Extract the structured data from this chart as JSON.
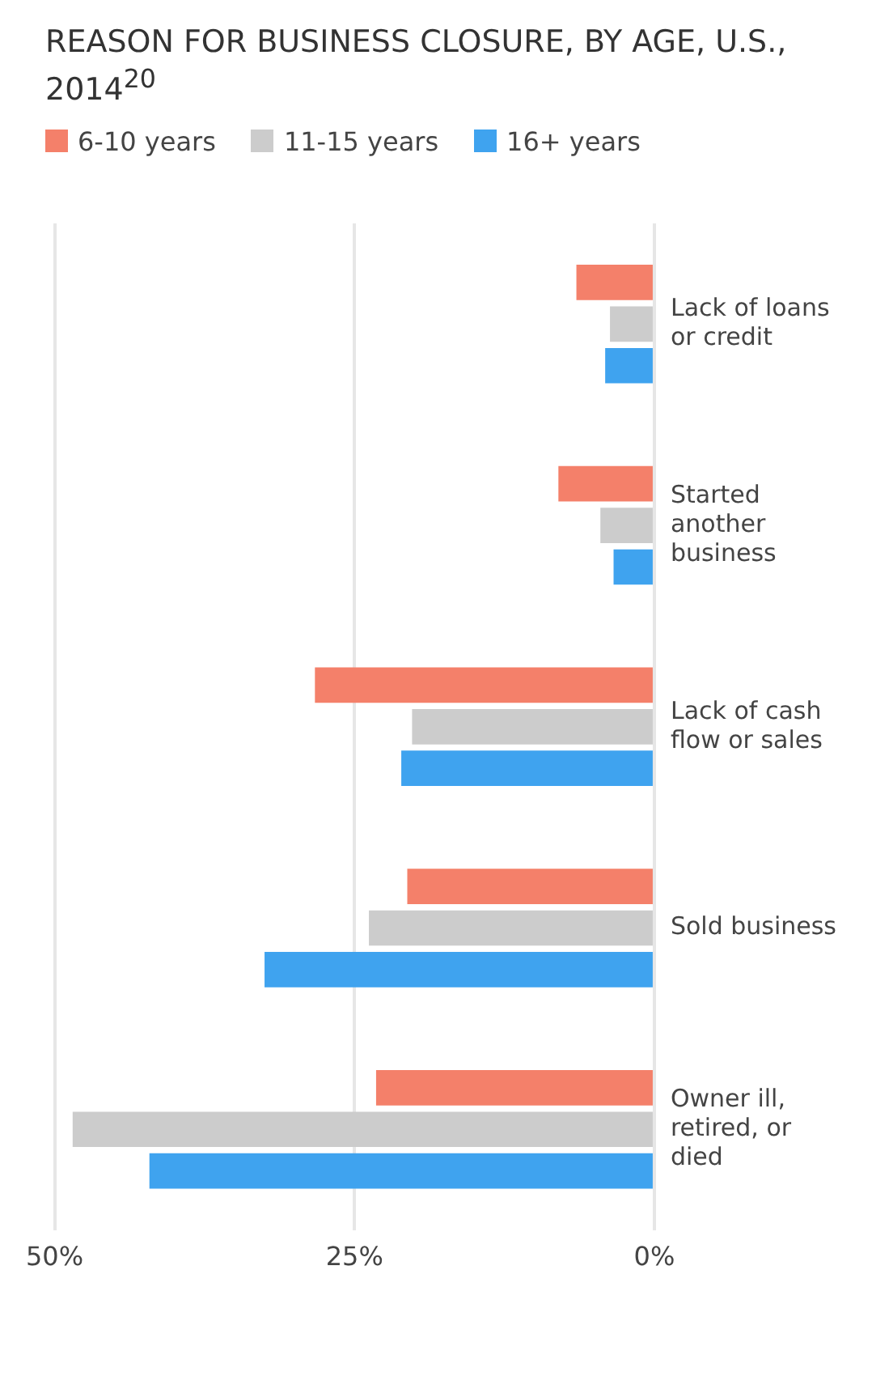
{
  "chart_data": {
    "type": "bar",
    "orientation": "horizontal",
    "title": "REASON FOR BUSINESS CLOSURE, BY AGE, U.S., 2014$^{20}$",
    "categories": [
      "Lack of loans or credit",
      "Started another business",
      "Lack of cash flow or sales",
      "Sold business",
      "Owner ill, retired, or died"
    ],
    "series": [
      {
        "name": "6-10 years",
        "color": "#f4806a",
        "values": [
          6.5,
          8,
          28.3,
          20.6,
          23.2
        ]
      },
      {
        "name": "11-15 years",
        "color": "#cccccc",
        "values": [
          3.7,
          4.5,
          20.2,
          23.8,
          48.5
        ]
      },
      {
        "name": "16+ years",
        "color": "#3fa3ef",
        "values": [
          4.1,
          3.4,
          21.1,
          32.5,
          42.1
        ]
      }
    ],
    "xlim": [
      50,
      0
    ],
    "xticks": [
      {
        "value": 50,
        "label": "50%"
      },
      {
        "value": 25,
        "label": "25%"
      },
      {
        "value": 0,
        "label": "0%"
      }
    ],
    "grid": "x",
    "legend": "top left"
  }
}
